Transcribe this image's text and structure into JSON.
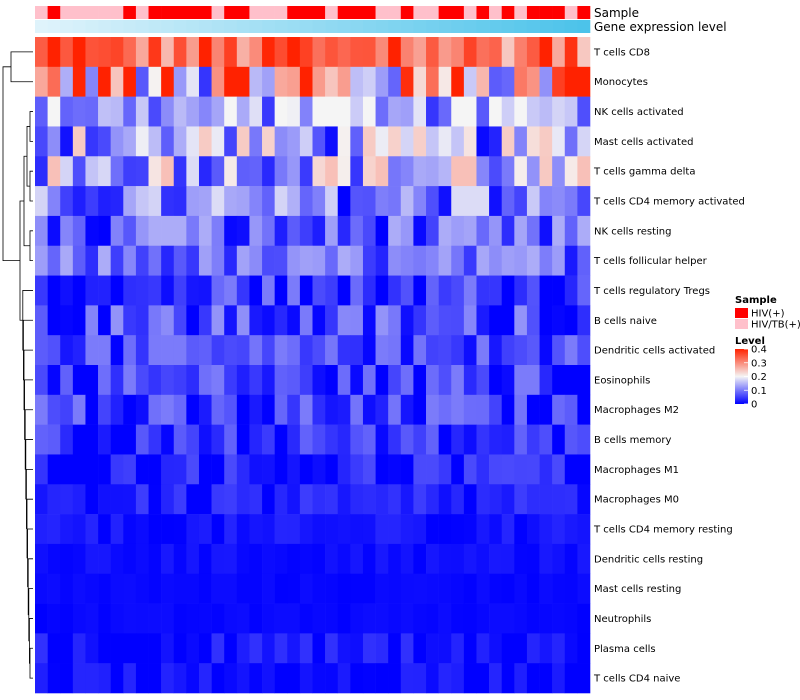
{
  "chart_data": {
    "type": "heatmap",
    "title": "",
    "xlabel": "",
    "ylabel": "",
    "rows": [
      "T cells CD8",
      "Monocytes",
      "NK cells activated",
      "Mast cells activated",
      "T cells gamma delta",
      "T cells CD4 memory activated",
      "NK cells resting",
      "T cells follicular helper",
      "T cells regulatory  Tregs",
      "B cells naive",
      "Dendritic cells activated",
      "Eosinophils",
      "Macrophages M2",
      "B cells memory",
      "Macrophages M1",
      "Macrophages M0",
      "T cells CD4 memory resting",
      "Dendritic cells resting",
      "Mast cells resting",
      "Neutrophils",
      "Plasma cells",
      "T cells CD4 naive"
    ],
    "n_columns": 44,
    "row_mean_levels": [
      0.32,
      0.22,
      0.12,
      0.12,
      0.14,
      0.09,
      0.06,
      0.08,
      0.04,
      0.05,
      0.05,
      0.04,
      0.03,
      0.03,
      0.02,
      0.02,
      0.01,
      0.01,
      0.005,
      0.005,
      0.01,
      0.005
    ],
    "row_max_levels": [
      0.4,
      0.4,
      0.2,
      0.24,
      0.25,
      0.18,
      0.14,
      0.14,
      0.1,
      0.12,
      0.1,
      0.1,
      0.1,
      0.08,
      0.06,
      0.05,
      0.03,
      0.02,
      0.01,
      0.01,
      0.04,
      0.03
    ],
    "annotations": {
      "sample": {
        "label": "Sample",
        "columns": [
          "HIV/TB(+)",
          "HIV(+)",
          "HIV/TB(+)",
          "HIV/TB(+)",
          "HIV/TB(+)",
          "HIV/TB(+)",
          "HIV/TB(+)",
          "HIV(+)",
          "HIV/TB(+)",
          "HIV(+)",
          "HIV(+)",
          "HIV(+)",
          "HIV(+)",
          "HIV(+)",
          "HIV/TB(+)",
          "HIV(+)",
          "HIV(+)",
          "HIV/TB(+)",
          "HIV/TB(+)",
          "HIV/TB(+)",
          "HIV(+)",
          "HIV(+)",
          "HIV(+)",
          "HIV/TB(+)",
          "HIV(+)",
          "HIV(+)",
          "HIV(+)",
          "HIV/TB(+)",
          "HIV/TB(+)",
          "HIV(+)",
          "HIV/TB(+)",
          "HIV/TB(+)",
          "HIV(+)",
          "HIV(+)",
          "HIV/TB(+)",
          "HIV(+)",
          "HIV/TB(+)",
          "HIV(+)",
          "HIV/TB(+)",
          "HIV(+)",
          "HIV(+)",
          "HIV(+)",
          "HIV/TB(+)",
          "HIV(+)"
        ]
      },
      "gene_expression": {
        "label": "Gene expression level"
      }
    },
    "legend": {
      "position": "right",
      "sample": {
        "title": "Sample",
        "entries": [
          {
            "label": "HIV(+)",
            "color": "#ff0000"
          },
          {
            "label": "HIV/TB(+)",
            "color": "#ffc0cb"
          }
        ]
      },
      "level": {
        "title": "Level",
        "ticks": [
          "0.4",
          "0.3",
          "0.2",
          "0.1",
          "0"
        ],
        "tick_values": [
          0.4,
          0.3,
          0.2,
          0.1,
          0
        ],
        "range": [
          0,
          0.4
        ],
        "colors": {
          "low": "#0000ff",
          "mid": "#f5f5f5",
          "high": "#ff2200"
        }
      }
    }
  },
  "colors": {
    "low": "#0000ff",
    "mid": "#f5f5f5",
    "high": "#ff2200",
    "gene_expression_light": "#dff3fb",
    "gene_expression_dark": "#4cc3ea"
  }
}
